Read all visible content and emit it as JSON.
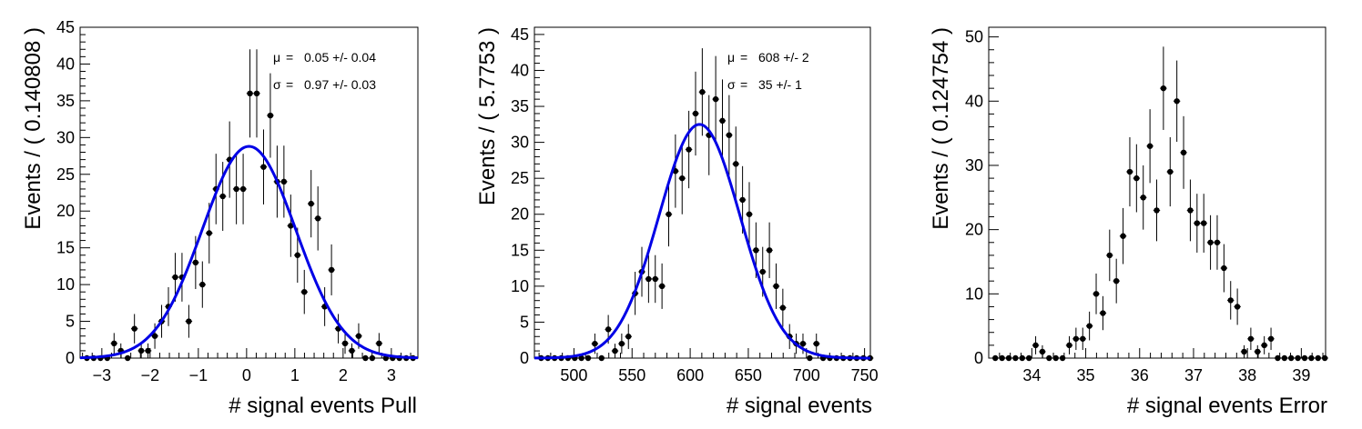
{
  "chart_data": [
    {
      "type": "scatter",
      "xlabel": "# signal events Pull",
      "ylabel": "Events / ( 0.140808 )",
      "xlim": [
        -3.45,
        3.55
      ],
      "ylim": [
        0,
        45
      ],
      "xticks": [
        -3,
        -2,
        -1,
        0,
        1,
        2,
        3
      ],
      "xtick_labels": [
        "−3",
        "−2",
        "−1",
        "0",
        "1",
        "2",
        "3"
      ],
      "yticks": [
        0,
        5,
        10,
        15,
        20,
        25,
        30,
        35,
        40,
        45
      ],
      "ytick_labels": [
        "0",
        "5",
        "10",
        "15",
        "20",
        "25",
        "30",
        "35",
        "40",
        "45"
      ],
      "x_start": -3.38,
      "bin_width": 0.140808,
      "values": [
        0,
        0,
        0,
        0,
        2,
        1,
        0,
        4,
        1,
        1,
        3,
        5,
        7,
        11,
        11,
        5,
        13,
        10,
        17,
        23,
        22,
        27,
        23,
        23,
        36,
        36,
        26,
        33,
        24,
        24,
        18,
        14,
        9,
        21,
        19,
        7,
        12,
        4,
        2,
        1,
        3,
        0,
        0,
        2,
        0,
        0,
        0,
        0,
        0,
        0
      ],
      "fit": {
        "type": "gaussian",
        "mean": 0.05,
        "sigma": 0.97,
        "amplitude": 28.8,
        "color": "#0000e6"
      },
      "stats": [
        {
          "symbol": "μ",
          "eq": "=",
          "text": "0.05 +/- 0.04"
        },
        {
          "symbol": "σ",
          "eq": "=",
          "text": "0.97 +/- 0.03"
        }
      ]
    },
    {
      "type": "scatter",
      "xlabel": "# signal events",
      "ylabel": "Events / ( 5.7753 )",
      "xlim": [
        466,
        755
      ],
      "ylim": [
        0,
        46
      ],
      "xticks": [
        500,
        550,
        600,
        650,
        700,
        750
      ],
      "xtick_labels": [
        "500",
        "550",
        "600",
        "650",
        "700",
        "750"
      ],
      "yticks": [
        0,
        5,
        10,
        15,
        20,
        25,
        30,
        35,
        40,
        45
      ],
      "ytick_labels": [
        "0",
        "5",
        "10",
        "15",
        "20",
        "25",
        "30",
        "35",
        "40",
        "45"
      ],
      "x_start": 468.9,
      "bin_width": 5.7753,
      "values": [
        0,
        0,
        0,
        0,
        0,
        0,
        0,
        0,
        2,
        0,
        4,
        1,
        2,
        3,
        9,
        12,
        11,
        11,
        10,
        20,
        26,
        25,
        29,
        34,
        37,
        31,
        36,
        33,
        31,
        27,
        22,
        20,
        15,
        12,
        15,
        10,
        7,
        3,
        2,
        2,
        0,
        2,
        0,
        0,
        0,
        0,
        0,
        0,
        0,
        0
      ],
      "fit": {
        "type": "gaussian",
        "mean": 608,
        "sigma": 35,
        "amplitude": 32.5,
        "color": "#0000e6"
      },
      "stats": [
        {
          "symbol": "μ",
          "eq": "=",
          "text": "608 +/- 2"
        },
        {
          "symbol": "σ",
          "eq": "=",
          "text": "35 +/- 1"
        }
      ]
    },
    {
      "type": "scatter",
      "xlabel": "# signal events Error",
      "ylabel": "Events / ( 0.124754 )",
      "xlim": [
        33.2,
        39.45
      ],
      "ylim": [
        0,
        51.5
      ],
      "xticks": [
        34,
        35,
        36,
        37,
        38,
        39
      ],
      "xtick_labels": [
        "34",
        "35",
        "36",
        "37",
        "38",
        "39"
      ],
      "yticks": [
        0,
        10,
        20,
        30,
        40,
        50
      ],
      "ytick_labels": [
        "0",
        "10",
        "20",
        "30",
        "40",
        "50"
      ],
      "x_start": 33.26,
      "bin_width": 0.124754,
      "values": [
        0,
        0,
        0,
        0,
        0,
        0,
        2,
        1,
        0,
        0,
        0,
        2,
        3,
        3,
        5,
        10,
        7,
        16,
        12,
        19,
        29,
        28,
        25,
        33,
        23,
        42,
        29,
        40,
        32,
        23,
        21,
        21,
        18,
        18,
        14,
        9,
        8,
        1,
        3,
        1,
        2,
        3,
        0,
        0,
        0,
        0,
        0,
        0,
        0,
        0
      ]
    }
  ]
}
